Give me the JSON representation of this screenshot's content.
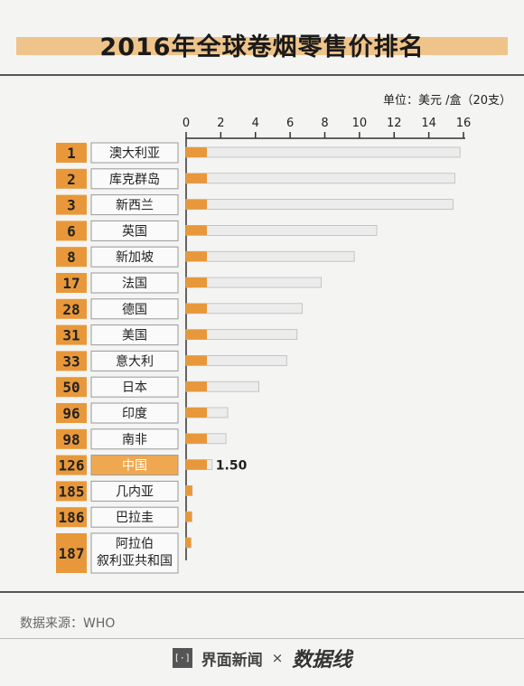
{
  "title": "2016年全球卷烟零售价排名",
  "unit_label": "单位：美元 /盒（20支）",
  "source": "数据来源：WHO",
  "brand": {
    "left": "界面新闻",
    "separator": "×",
    "right": "数据线",
    "left_icon_text": "[·]"
  },
  "colors": {
    "accent": "#e8983a",
    "bar_bg": "#ececec",
    "highlight": "#f0a850"
  },
  "chart_data": {
    "type": "bar",
    "orientation": "horizontal",
    "xlim": [
      0,
      16
    ],
    "xticks": [
      0,
      2,
      4,
      6,
      8,
      10,
      12,
      14,
      16
    ],
    "rows": [
      {
        "rank": "1",
        "country": "澳大利亚",
        "value": 15.8
      },
      {
        "rank": "2",
        "country": "库克群岛",
        "value": 15.5
      },
      {
        "rank": "3",
        "country": "新西兰",
        "value": 15.4
      },
      {
        "rank": "6",
        "country": "英国",
        "value": 11.0
      },
      {
        "rank": "8",
        "country": "新加坡",
        "value": 9.7
      },
      {
        "rank": "17",
        "country": "法国",
        "value": 7.8
      },
      {
        "rank": "28",
        "country": "德国",
        "value": 6.7
      },
      {
        "rank": "31",
        "country": "美国",
        "value": 6.4
      },
      {
        "rank": "33",
        "country": "意大利",
        "value": 5.8
      },
      {
        "rank": "50",
        "country": "日本",
        "value": 4.2
      },
      {
        "rank": "96",
        "country": "印度",
        "value": 2.4
      },
      {
        "rank": "98",
        "country": "南非",
        "value": 2.3
      },
      {
        "rank": "126",
        "country": "中国",
        "value": 1.5,
        "label": "1.50",
        "highlight": true
      },
      {
        "rank": "185",
        "country": "几内亚",
        "value": 0.35
      },
      {
        "rank": "186",
        "country": "巴拉圭",
        "value": 0.33
      },
      {
        "rank": "187",
        "country": "阿拉伯叙利亚共和国",
        "country_lines": [
          "阿拉伯",
          "叙利亚共和国"
        ],
        "value": 0.28
      }
    ]
  }
}
